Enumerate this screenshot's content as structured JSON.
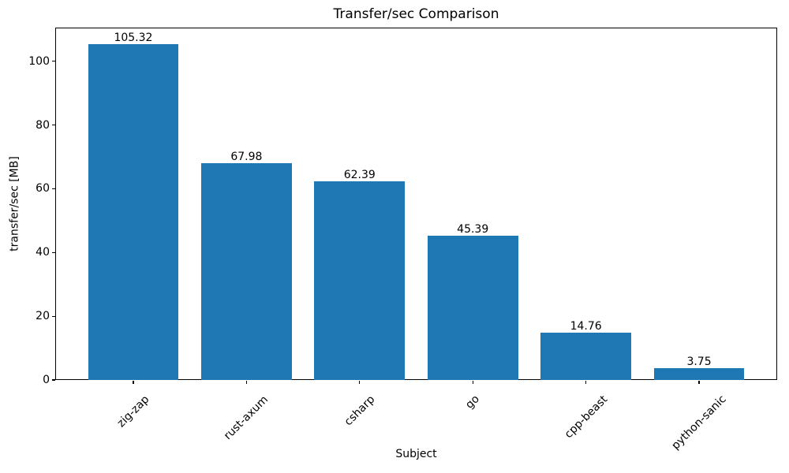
{
  "chart_data": {
    "type": "bar",
    "title": "Transfer/sec Comparison",
    "xlabel": "Subject",
    "ylabel": "transfer/sec [MB]",
    "categories": [
      "zig-zap",
      "rust-axum",
      "csharp",
      "go",
      "cpp-beast",
      "python-sanic"
    ],
    "values": [
      105.32,
      67.98,
      62.39,
      45.39,
      14.76,
      3.75
    ],
    "value_labels": [
      "105.32",
      "67.98",
      "62.39",
      "45.39",
      "14.76",
      "3.75"
    ],
    "yticks": [
      0,
      20,
      40,
      60,
      80,
      100
    ],
    "ylim": [
      0,
      110.59
    ],
    "xlim": [
      -0.69,
      5.69
    ],
    "bar_width_fraction": 0.8,
    "bar_color": "#1f77b4",
    "text_color": "#000000",
    "grid": false,
    "legend": null,
    "x_tick_rotation_deg": 45
  }
}
